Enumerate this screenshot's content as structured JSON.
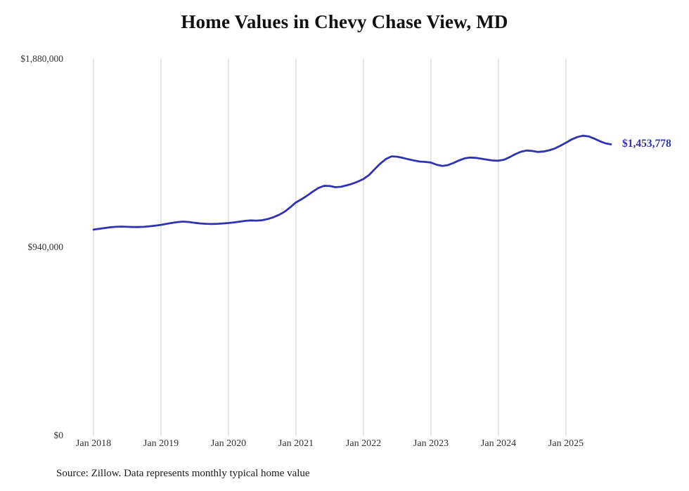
{
  "page": {
    "title": "Home Values in Chevy Chase View, MD",
    "source": "Source: Zillow. Data represents monthly typical home value",
    "end_label": "$1,453,778"
  },
  "chart_data": {
    "type": "line",
    "title": "Home Values in Chevy Chase View, MD",
    "xlabel": "",
    "ylabel": "",
    "ylim": [
      0,
      1880000
    ],
    "grid": "vertical",
    "legend": "none",
    "line_color": "#3232b0",
    "grid_color": "#c9c9c9",
    "y_ticks": [
      {
        "value": 0,
        "label": "$0"
      },
      {
        "value": 940000,
        "label": "$940,000"
      },
      {
        "value": 1880000,
        "label": "$1,880,000"
      }
    ],
    "x_ticks": [
      "Jan 2018",
      "Jan 2019",
      "Jan 2020",
      "Jan 2021",
      "Jan 2022",
      "Jan 2023",
      "Jan 2024",
      "Jan 2025"
    ],
    "series": [
      {
        "name": "Typical home value",
        "x_start": "2018-01",
        "x_step": "1 month",
        "values": [
          1028000,
          1032000,
          1036000,
          1040000,
          1042000,
          1043000,
          1042000,
          1041000,
          1041000,
          1042000,
          1045000,
          1048000,
          1052000,
          1057000,
          1062000,
          1066000,
          1068000,
          1066000,
          1062000,
          1059000,
          1057000,
          1056000,
          1057000,
          1059000,
          1061000,
          1064000,
          1068000,
          1072000,
          1074000,
          1073000,
          1075000,
          1081000,
          1090000,
          1102000,
          1118000,
          1140000,
          1164000,
          1180000,
          1198000,
          1218000,
          1236000,
          1247000,
          1246000,
          1240000,
          1242000,
          1249000,
          1257000,
          1268000,
          1281000,
          1301000,
          1330000,
          1358000,
          1381000,
          1394000,
          1392000,
          1386000,
          1379000,
          1373000,
          1368000,
          1366000,
          1363000,
          1352000,
          1346000,
          1350000,
          1361000,
          1374000,
          1384000,
          1388000,
          1386000,
          1382000,
          1377000,
          1373000,
          1372000,
          1377000,
          1390000,
          1405000,
          1417000,
          1423000,
          1421000,
          1416000,
          1418000,
          1424000,
          1433000,
          1447000,
          1462000,
          1478000,
          1490000,
          1497000,
          1494000,
          1483000,
          1470000,
          1459000,
          1453778
        ]
      }
    ],
    "annotations": [
      {
        "text": "$1,453,778",
        "position": "line-end",
        "color": "#3232b0"
      }
    ]
  }
}
